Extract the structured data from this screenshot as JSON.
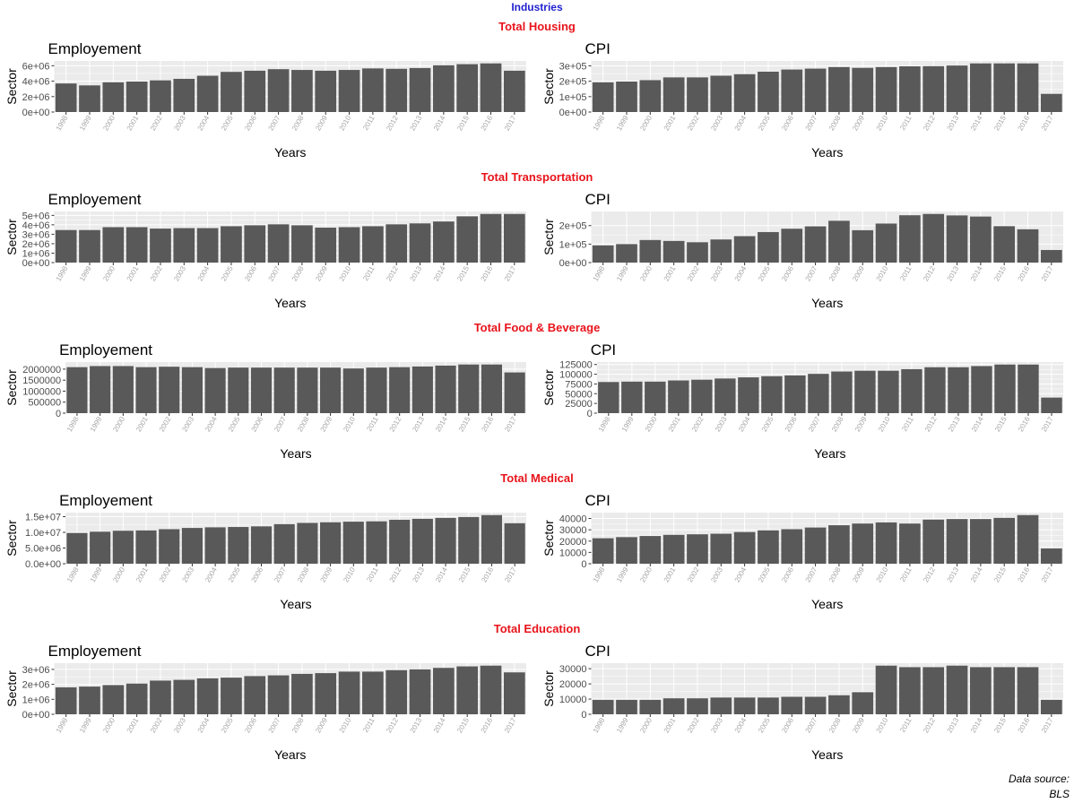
{
  "page_title": "Industries",
  "caption": {
    "line1": "Data source:",
    "line2": "BLS"
  },
  "colors": {
    "panel_bg": "#EBEBEB",
    "grid": "#FFFFFF",
    "bar": "#595959",
    "section_title": "#E8141B",
    "page_title": "#1F1FD0"
  },
  "sections": [
    {
      "title": "Total Housing"
    },
    {
      "title": "Total Transportation"
    },
    {
      "title": "Total Food & Beverage"
    },
    {
      "title": "Total Medical"
    },
    {
      "title": "Total Education"
    }
  ],
  "chart_data": [
    {
      "type": "bar",
      "section": "Total Housing",
      "title": "Employement",
      "xlabel": "Years",
      "ylabel": "Sector",
      "categories": [
        "1998",
        "1999",
        "2000",
        "2001",
        "2002",
        "2003",
        "2004",
        "2005",
        "2006",
        "2007",
        "2008",
        "2009",
        "2010",
        "2011",
        "2012",
        "2013",
        "2014",
        "2015",
        "2016",
        "2017"
      ],
      "values": [
        3700000,
        3450000,
        3850000,
        3950000,
        4100000,
        4300000,
        4700000,
        5200000,
        5350000,
        5550000,
        5450000,
        5350000,
        5450000,
        5650000,
        5600000,
        5700000,
        6050000,
        6200000,
        6300000,
        5350000
      ],
      "ylim": [
        0,
        6300000
      ],
      "yticks": [
        0,
        2000000,
        4000000,
        6000000
      ],
      "yticklabels": [
        "0e+00",
        "2e+06",
        "4e+06",
        "6e+06"
      ],
      "grid": true
    },
    {
      "type": "bar",
      "section": "Total Housing",
      "title": "CPI",
      "xlabel": "Years",
      "ylabel": "Sector",
      "categories": [
        "1998",
        "1999",
        "2000",
        "2001",
        "2002",
        "2003",
        "2004",
        "2005",
        "2006",
        "2007",
        "2008",
        "2009",
        "2010",
        "2011",
        "2012",
        "2013",
        "2014",
        "2015",
        "2016",
        "2017"
      ],
      "values": [
        193000,
        198000,
        207000,
        225000,
        225000,
        236000,
        246000,
        262000,
        276000,
        282000,
        292000,
        287000,
        292000,
        297000,
        298000,
        302000,
        316000,
        316000,
        316000,
        118000
      ],
      "ylim": [
        0,
        316000
      ],
      "yticks": [
        0,
        100000,
        200000,
        300000
      ],
      "yticklabels": [
        "0e+00",
        "1e+05",
        "2e+05",
        "3e+05"
      ],
      "grid": true
    },
    {
      "type": "bar",
      "section": "Total Transportation",
      "title": "Employement",
      "xlabel": "Years",
      "ylabel": "Sector",
      "categories": [
        "1998",
        "1999",
        "2000",
        "2001",
        "2002",
        "2003",
        "2004",
        "2005",
        "2006",
        "2007",
        "2008",
        "2009",
        "2010",
        "2011",
        "2012",
        "2013",
        "2014",
        "2015",
        "2016",
        "2017"
      ],
      "values": [
        3450000,
        3450000,
        3750000,
        3750000,
        3600000,
        3650000,
        3650000,
        3850000,
        3950000,
        4050000,
        3950000,
        3700000,
        3750000,
        3850000,
        4050000,
        4150000,
        4350000,
        4900000,
        5150000,
        5150000
      ],
      "ylim": [
        0,
        5150000
      ],
      "yticks": [
        0,
        1000000,
        2000000,
        3000000,
        4000000,
        5000000
      ],
      "yticklabels": [
        "0e+00",
        "1e+06",
        "2e+06",
        "3e+06",
        "4e+06",
        "5e+06"
      ],
      "grid": true
    },
    {
      "type": "bar",
      "section": "Total Transportation",
      "title": "CPI",
      "xlabel": "Years",
      "ylabel": "Sector",
      "categories": [
        "1998",
        "1999",
        "2000",
        "2001",
        "2002",
        "2003",
        "2004",
        "2005",
        "2006",
        "2007",
        "2008",
        "2009",
        "2010",
        "2011",
        "2012",
        "2013",
        "2014",
        "2015",
        "2016",
        "2017"
      ],
      "values": [
        93000,
        100000,
        122000,
        117000,
        110000,
        125000,
        143000,
        165000,
        183000,
        196000,
        226000,
        175000,
        211000,
        256000,
        263000,
        255000,
        249000,
        197000,
        180000,
        68000
      ],
      "ylim": [
        0,
        263000
      ],
      "yticks": [
        0,
        100000,
        200000
      ],
      "yticklabels": [
        "0e+00",
        "1e+05",
        "2e+05"
      ],
      "grid": true
    },
    {
      "type": "bar",
      "section": "Total Food & Beverage",
      "title": "Employement",
      "xlabel": "Years",
      "ylabel": "Sector",
      "categories": [
        "1998",
        "1999",
        "2000",
        "2001",
        "2002",
        "2003",
        "2004",
        "2005",
        "2006",
        "2007",
        "2008",
        "2009",
        "2010",
        "2011",
        "2012",
        "2013",
        "2014",
        "2015",
        "2016",
        "2017"
      ],
      "values": [
        2090000,
        2140000,
        2140000,
        2090000,
        2110000,
        2090000,
        2050000,
        2070000,
        2070000,
        2070000,
        2070000,
        2070000,
        2030000,
        2070000,
        2090000,
        2120000,
        2160000,
        2210000,
        2210000,
        1850000
      ],
      "ylim": [
        0,
        2210000
      ],
      "yticks": [
        0,
        500000,
        1000000,
        1500000,
        2000000
      ],
      "yticklabels": [
        "0",
        "500000",
        "1000000",
        "1500000",
        "2000000"
      ],
      "grid": true
    },
    {
      "type": "bar",
      "section": "Total Food & Beverage",
      "title": "CPI",
      "xlabel": "Years",
      "ylabel": "Sector",
      "categories": [
        "1998",
        "1999",
        "2000",
        "2001",
        "2002",
        "2003",
        "2004",
        "2005",
        "2006",
        "2007",
        "2008",
        "2009",
        "2010",
        "2011",
        "2012",
        "2013",
        "2014",
        "2015",
        "2016",
        "2017"
      ],
      "values": [
        80000,
        81000,
        81000,
        84000,
        86000,
        89000,
        92000,
        95000,
        97000,
        101000,
        107000,
        109000,
        109000,
        113000,
        118000,
        118000,
        121000,
        125000,
        125000,
        40000
      ],
      "ylim": [
        0,
        125000
      ],
      "yticks": [
        0,
        25000,
        50000,
        75000,
        100000,
        125000
      ],
      "yticklabels": [
        "0",
        "25000",
        "50000",
        "75000",
        "100000",
        "125000"
      ],
      "grid": true
    },
    {
      "type": "bar",
      "section": "Total Medical",
      "title": "Employement",
      "xlabel": "Years",
      "ylabel": "Sector",
      "categories": [
        "1998",
        "1999",
        "2000",
        "2001",
        "2002",
        "2003",
        "2004",
        "2005",
        "2006",
        "2007",
        "2008",
        "2009",
        "2010",
        "2011",
        "2012",
        "2013",
        "2014",
        "2015",
        "2016",
        "2017"
      ],
      "values": [
        9800000,
        10200000,
        10500000,
        10600000,
        11000000,
        11400000,
        11600000,
        11700000,
        11900000,
        12600000,
        13000000,
        13200000,
        13400000,
        13500000,
        14000000,
        14300000,
        14600000,
        14900000,
        15500000,
        12900000
      ],
      "ylim": [
        0,
        15500000
      ],
      "yticks": [
        0,
        5000000,
        10000000,
        15000000
      ],
      "yticklabels": [
        "0.0e+00",
        "5.0e+06",
        "1.0e+07",
        "1.5e+07"
      ],
      "grid": true
    },
    {
      "type": "bar",
      "section": "Total Medical",
      "title": "CPI",
      "xlabel": "Years",
      "ylabel": "Sector",
      "categories": [
        "1998",
        "1999",
        "2000",
        "2001",
        "2002",
        "2003",
        "2004",
        "2005",
        "2006",
        "2007",
        "2008",
        "2009",
        "2010",
        "2011",
        "2012",
        "2013",
        "2014",
        "2015",
        "2016",
        "2017"
      ],
      "values": [
        22500,
        23500,
        24500,
        25500,
        26000,
        26500,
        28000,
        29500,
        30500,
        32000,
        34000,
        35500,
        36500,
        35500,
        39000,
        39500,
        39500,
        40500,
        43000,
        13500
      ],
      "ylim": [
        0,
        43000
      ],
      "yticks": [
        0,
        10000,
        20000,
        30000,
        40000
      ],
      "yticklabels": [
        "0",
        "10000",
        "20000",
        "30000",
        "40000"
      ],
      "grid": true
    },
    {
      "type": "bar",
      "section": "Total Education",
      "title": "Employement",
      "xlabel": "Years",
      "ylabel": "Sector",
      "categories": [
        "1998",
        "1999",
        "2000",
        "2001",
        "2002",
        "2003",
        "2004",
        "2005",
        "2006",
        "2007",
        "2008",
        "2009",
        "2010",
        "2011",
        "2012",
        "2013",
        "2014",
        "2015",
        "2016",
        "2017"
      ],
      "values": [
        1800000,
        1850000,
        1950000,
        2050000,
        2250000,
        2300000,
        2400000,
        2450000,
        2550000,
        2600000,
        2700000,
        2750000,
        2850000,
        2850000,
        2950000,
        3000000,
        3100000,
        3200000,
        3250000,
        2800000
      ],
      "ylim": [
        0,
        3250000
      ],
      "yticks": [
        0,
        1000000,
        2000000,
        3000000
      ],
      "yticklabels": [
        "0e+00",
        "1e+06",
        "2e+06",
        "3e+06"
      ],
      "grid": true
    },
    {
      "type": "bar",
      "section": "Total Education",
      "title": "CPI",
      "xlabel": "Years",
      "ylabel": "Sector",
      "categories": [
        "1998",
        "1999",
        "2000",
        "2001",
        "2002",
        "2003",
        "2004",
        "2005",
        "2006",
        "2007",
        "2008",
        "2009",
        "2010",
        "2011",
        "2012",
        "2013",
        "2014",
        "2015",
        "2016",
        "2017"
      ],
      "values": [
        9500,
        9500,
        9500,
        10500,
        10500,
        11000,
        11000,
        11000,
        11500,
        11500,
        12500,
        14500,
        32000,
        31000,
        31000,
        32000,
        31000,
        31000,
        31000,
        9500
      ],
      "ylim": [
        0,
        32000
      ],
      "yticks": [
        0,
        10000,
        20000,
        30000
      ],
      "yticklabels": [
        "0",
        "10000",
        "20000",
        "30000"
      ],
      "grid": true
    }
  ]
}
